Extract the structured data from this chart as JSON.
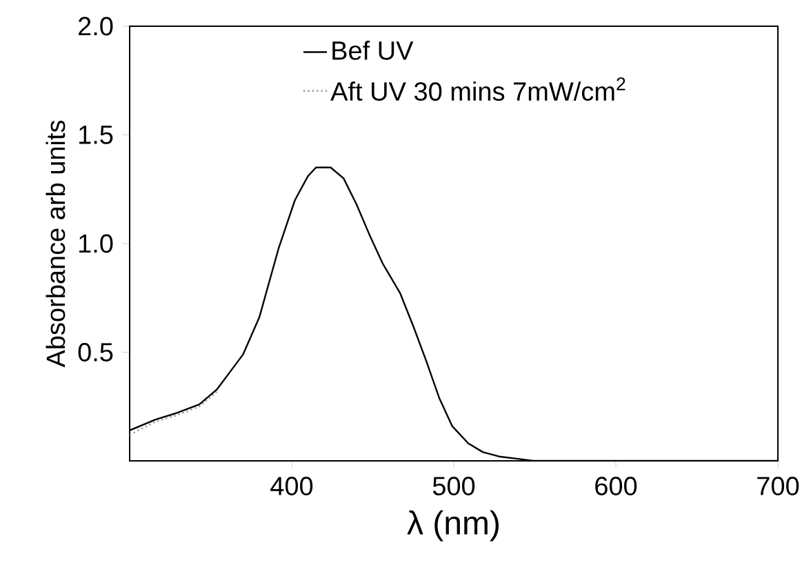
{
  "chart_data": {
    "type": "line",
    "xlabel": "λ  (nm)",
    "ylabel": "Absorbance arb units",
    "xlim": [
      300,
      700
    ],
    "ylim": [
      0,
      2
    ],
    "xticks": [
      400,
      500,
      600,
      700
    ],
    "yticks": [
      0.5,
      {
        "value": 1,
        "label": "1.0"
      },
      1.5,
      {
        "value": 2,
        "label": "2.0"
      }
    ],
    "x": [
      300,
      316,
      329,
      343,
      354,
      362,
      370,
      380,
      392,
      402,
      410,
      415,
      424,
      432,
      440,
      448,
      456,
      467,
      475,
      483,
      491,
      499,
      509,
      518,
      528,
      539,
      549,
      600,
      700
    ],
    "series": [
      {
        "name": "Bef UV",
        "color": "#000000",
        "line_style": "solid",
        "values": [
          0.14,
          0.19,
          0.22,
          0.26,
          0.33,
          0.41,
          0.49,
          0.66,
          0.98,
          1.2,
          1.31,
          1.35,
          1.35,
          1.3,
          1.18,
          1.04,
          0.91,
          0.77,
          0.62,
          0.46,
          0.29,
          0.16,
          0.08,
          0.04,
          0.02,
          0.01,
          0,
          0,
          0
        ]
      },
      {
        "name": "Aft UV 30 mins 7mW/cm$^{2}$",
        "color": "#999999",
        "line_style": "dotted",
        "x": [
          300,
          316,
          329,
          343,
          354
        ],
        "values": [
          0.12,
          0.18,
          0.21,
          0.25,
          0.32
        ]
      }
    ],
    "legend": "top",
    "grid": false,
    "marker": "none"
  }
}
